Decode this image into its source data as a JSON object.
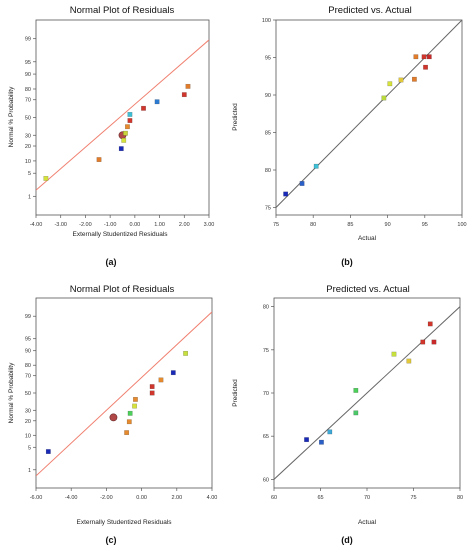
{
  "panels": [
    {
      "letter": "(a)",
      "chart_data": {
        "type": "scatter",
        "title": "Normal Plot of Residuals",
        "xlabel": "Externally Studentized Residuals",
        "ylabel": "Normal % Probability",
        "xlim": [
          -4.0,
          3.0
        ],
        "xticks": [
          -4,
          -3,
          -2,
          -1,
          0,
          1,
          2,
          3
        ],
        "xtick_labels": [
          "-4.00",
          "-3.00",
          "-2.00",
          "-1.00",
          "0.00",
          "1.00",
          "2.00",
          "3.00"
        ],
        "ylim": [
          0.2,
          99.8
        ],
        "yscale": "normal-probability",
        "yticks": [
          1,
          5,
          10,
          20,
          30,
          50,
          70,
          80,
          90,
          95,
          99
        ],
        "ytick_labels": [
          "1",
          "5",
          "10",
          "20",
          "30",
          "50",
          "70",
          "80",
          "90",
          "95",
          "99"
        ],
        "fit_line": [
          [
            -4.0,
            1.6
          ],
          [
            3.0,
            98.9
          ]
        ],
        "points": [
          {
            "x": -3.6,
            "y": 3.6,
            "color": "#d6e23c"
          },
          {
            "x": -1.45,
            "y": 10.7,
            "color": "#e17c2a"
          },
          {
            "x": -0.55,
            "y": 17.9,
            "color": "#1a2ab8"
          },
          {
            "x": -0.45,
            "y": 25.0,
            "color": "#d6e23c"
          },
          {
            "x": -0.38,
            "y": 32.1,
            "color": "#c8d43a"
          },
          {
            "x": -0.3,
            "y": 39.3,
            "color": "#e68a2e"
          },
          {
            "x": -0.2,
            "y": 46.4,
            "color": "#d0362c"
          },
          {
            "x": -0.2,
            "y": 53.6,
            "color": "#3fbfd5"
          },
          {
            "x": 0.35,
            "y": 60.7,
            "color": "#d0362c"
          },
          {
            "x": 0.9,
            "y": 67.9,
            "color": "#2b7bd2"
          },
          {
            "x": 2.0,
            "y": 75.0,
            "color": "#d0362c"
          },
          {
            "x": 2.15,
            "y": 82.1,
            "color": "#e17c2a"
          }
        ],
        "highlight": {
          "x": -0.5,
          "y": 30.0,
          "color": "#b04848"
        }
      }
    },
    {
      "letter": "(b)",
      "chart_data": {
        "type": "scatter",
        "title": "Predicted vs. Actual",
        "xlabel": "Actual",
        "ylabel": "Predicted",
        "xlim": [
          75,
          100
        ],
        "xticks": [
          75,
          80,
          85,
          90,
          95,
          100
        ],
        "xtick_labels": [
          "75",
          "80",
          "85",
          "90",
          "95",
          "100"
        ],
        "ylim": [
          74,
          100
        ],
        "yticks": [
          75,
          80,
          85,
          90,
          95,
          100
        ],
        "ytick_labels": [
          "75",
          "80",
          "85",
          "90",
          "95",
          "100"
        ],
        "fit_line": [
          [
            75,
            75
          ],
          [
            100,
            100
          ]
        ],
        "points": [
          {
            "x": 76.3,
            "y": 76.8,
            "color": "#1a2ab8"
          },
          {
            "x": 78.5,
            "y": 78.2,
            "color": "#2b5fc8"
          },
          {
            "x": 80.4,
            "y": 80.5,
            "color": "#3fbfd5"
          },
          {
            "x": 89.5,
            "y": 89.6,
            "color": "#b8d83c"
          },
          {
            "x": 90.3,
            "y": 91.5,
            "color": "#d6e23c"
          },
          {
            "x": 91.8,
            "y": 92.0,
            "color": "#e0c83a"
          },
          {
            "x": 93.6,
            "y": 92.1,
            "color": "#e17c2a"
          },
          {
            "x": 93.8,
            "y": 95.1,
            "color": "#e17c2a"
          },
          {
            "x": 94.9,
            "y": 95.1,
            "color": "#d0362c"
          },
          {
            "x": 95.1,
            "y": 93.7,
            "color": "#d0362c"
          },
          {
            "x": 95.6,
            "y": 95.1,
            "color": "#c82a2a"
          }
        ]
      }
    },
    {
      "letter": "(c)",
      "chart_data": {
        "type": "scatter",
        "title": "Normal Plot of Residuals",
        "xlabel": "Externally Studentized Residuals",
        "ylabel": "Normal % Probability",
        "xlim": [
          -6.0,
          4.0
        ],
        "xticks": [
          -6,
          -4,
          -2,
          0,
          2,
          4
        ],
        "xtick_labels": [
          "-6.00",
          "-4.00",
          "-2.00",
          "0.00",
          "2.00",
          "4.00"
        ],
        "ylim": [
          0.2,
          99.8
        ],
        "yscale": "normal-probability",
        "yticks": [
          1,
          5,
          10,
          20,
          30,
          50,
          70,
          80,
          90,
          95,
          99
        ],
        "ytick_labels": [
          "1",
          "5",
          "10",
          "20",
          "30",
          "50",
          "70",
          "80",
          "90",
          "95",
          "99"
        ],
        "fit_line": [
          [
            -6.0,
            0.6
          ],
          [
            4.0,
            99.3
          ]
        ],
        "points": [
          {
            "x": -5.3,
            "y": 3.8,
            "color": "#1a2ab8"
          },
          {
            "x": -0.85,
            "y": 11.5,
            "color": "#e68a2e"
          },
          {
            "x": -0.7,
            "y": 19.2,
            "color": "#e68a2e"
          },
          {
            "x": -0.65,
            "y": 26.9,
            "color": "#4cd05a"
          },
          {
            "x": -0.4,
            "y": 34.6,
            "color": "#d6e23c"
          },
          {
            "x": -0.35,
            "y": 42.3,
            "color": "#e68a2e"
          },
          {
            "x": 0.6,
            "y": 50.0,
            "color": "#d0362c"
          },
          {
            "x": 0.6,
            "y": 57.7,
            "color": "#d0362c"
          },
          {
            "x": 1.1,
            "y": 65.4,
            "color": "#e68a2e"
          },
          {
            "x": 1.8,
            "y": 73.1,
            "color": "#1a2ab8"
          },
          {
            "x": 2.5,
            "y": 88.5,
            "color": "#c8e03c"
          }
        ],
        "highlight": {
          "x": -1.6,
          "y": 23.0,
          "color": "#b04848"
        }
      }
    },
    {
      "letter": "(d)",
      "chart_data": {
        "type": "scatter",
        "title": "Predicted vs. Actual",
        "xlabel": "Actual",
        "ylabel": "Predicted",
        "xlim": [
          60,
          80
        ],
        "xticks": [
          60,
          65,
          70,
          75,
          80
        ],
        "xtick_labels": [
          "60",
          "65",
          "70",
          "75",
          "80"
        ],
        "ylim": [
          59,
          81
        ],
        "yticks": [
          60,
          65,
          70,
          75,
          80
        ],
        "ytick_labels": [
          "60",
          "65",
          "70",
          "75",
          "80"
        ],
        "fit_line": [
          [
            60,
            60
          ],
          [
            80,
            80
          ]
        ],
        "points": [
          {
            "x": 63.5,
            "y": 64.6,
            "color": "#1a2ab8"
          },
          {
            "x": 65.1,
            "y": 64.3,
            "color": "#2b5fc8"
          },
          {
            "x": 66.0,
            "y": 65.5,
            "color": "#3fa8d5"
          },
          {
            "x": 68.8,
            "y": 67.7,
            "color": "#4cc86a"
          },
          {
            "x": 68.8,
            "y": 70.3,
            "color": "#4cd05a"
          },
          {
            "x": 72.9,
            "y": 74.5,
            "color": "#c8e03c"
          },
          {
            "x": 74.5,
            "y": 73.7,
            "color": "#e0c83a"
          },
          {
            "x": 76.0,
            "y": 75.9,
            "color": "#d0362c"
          },
          {
            "x": 76.8,
            "y": 78.0,
            "color": "#d0362c"
          },
          {
            "x": 77.2,
            "y": 75.9,
            "color": "#c82a2a"
          }
        ]
      }
    }
  ]
}
